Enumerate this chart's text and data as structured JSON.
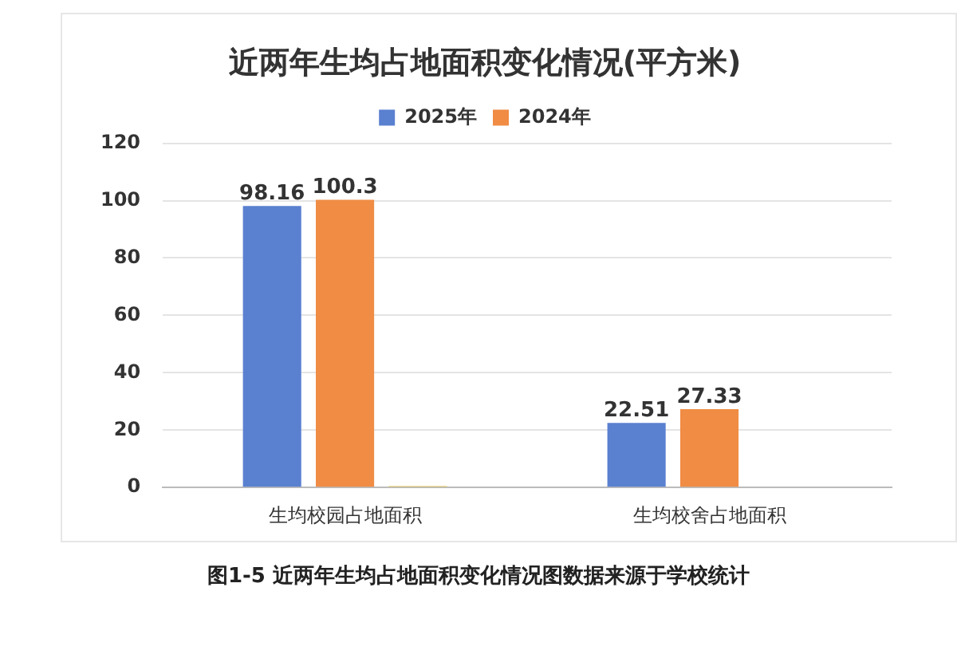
{
  "chart_data": {
    "type": "bar",
    "title": "近两年生均占地面积变化情况(平方米)",
    "categories": [
      "生均校园占地面积",
      "生均校舍占地面积"
    ],
    "series": [
      {
        "name": "2025年",
        "color": "#5a80d0",
        "values": [
          98.16,
          22.51
        ],
        "value_labels": [
          "98.16",
          "22.51"
        ]
      },
      {
        "name": "2024年",
        "color": "#f08c44",
        "values": [
          100.3,
          27.33
        ],
        "value_labels": [
          "100.3",
          "27.33"
        ]
      },
      {
        "color": "#e6c440",
        "values": [
          0.5,
          null
        ]
      }
    ],
    "ylim": [
      0,
      120
    ],
    "yticks": [
      0,
      20,
      40,
      60,
      80,
      100,
      120
    ],
    "grid": "y",
    "legend": "top",
    "annotations": [
      "图1-5  近两年生均占地面积变化情况图数据来源于学校统计"
    ]
  }
}
